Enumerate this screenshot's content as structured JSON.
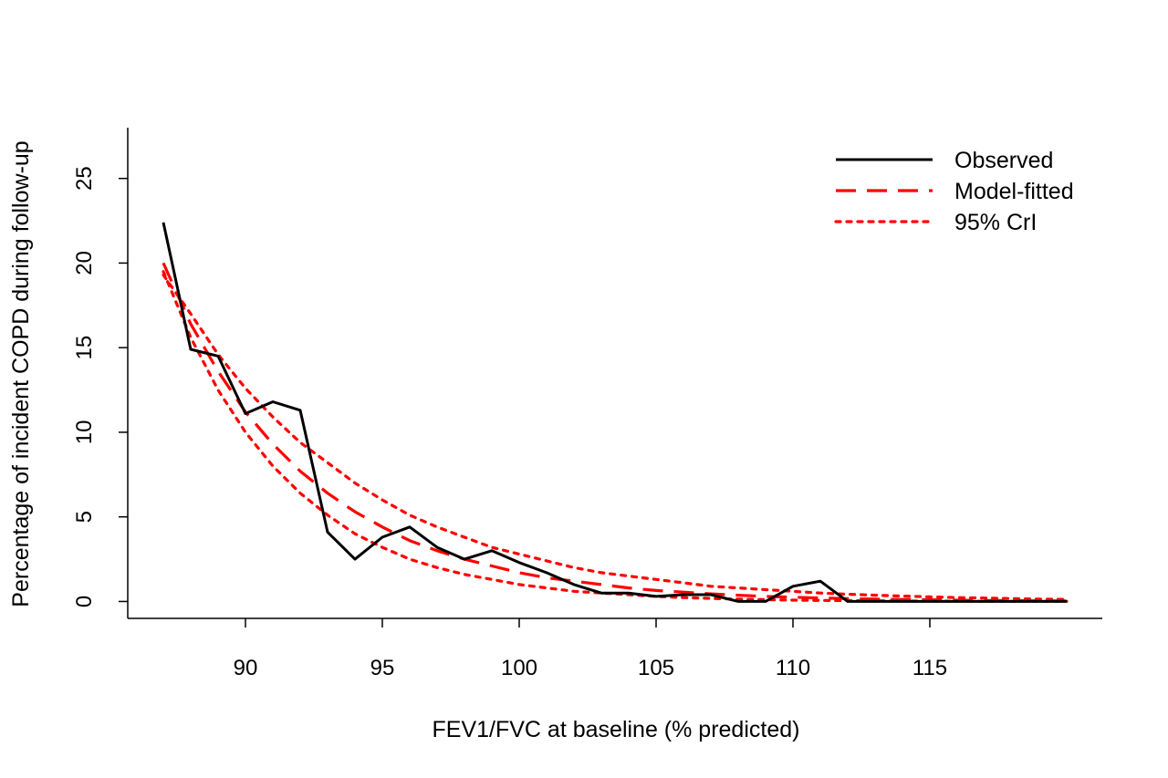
{
  "chart_data": {
    "type": "line",
    "xlabel": "FEV1/FVC at baseline (% predicted)",
    "ylabel": "Percentage of incident COPD during follow-up",
    "xlim": [
      85.7,
      121.3
    ],
    "ylim": [
      -1.0,
      28.0
    ],
    "xticks": [
      90,
      95,
      100,
      105,
      110,
      115
    ],
    "yticks": [
      0,
      5,
      10,
      15,
      20,
      25
    ],
    "legend": {
      "position": "top-right",
      "entries": [
        {
          "label": "Observed",
          "color": "#000000",
          "style": "solid"
        },
        {
          "label": "Model-fitted",
          "color": "#ff0000",
          "style": "dashed"
        },
        {
          "label": "95% CrI",
          "color": "#ff0000",
          "style": "dotted"
        }
      ]
    },
    "series": [
      {
        "name": "Observed",
        "color": "#000000",
        "style": "solid",
        "x": [
          87,
          88,
          89,
          90,
          91,
          92,
          93,
          94,
          95,
          96,
          97,
          98,
          99,
          100,
          101,
          102,
          103,
          104,
          105,
          106,
          107,
          108,
          109,
          110,
          111,
          112,
          113,
          114,
          115,
          116,
          117,
          118,
          119,
          120
        ],
        "y": [
          22.4,
          14.9,
          14.5,
          11.1,
          11.8,
          11.3,
          4.1,
          2.5,
          3.8,
          4.4,
          3.2,
          2.5,
          3.0,
          2.3,
          1.7,
          1.0,
          0.5,
          0.5,
          0.3,
          0.4,
          0.4,
          0.0,
          0.0,
          0.9,
          1.2,
          0.0,
          0.0,
          0.0,
          0.0,
          0.0,
          0.0,
          0.0,
          0.0,
          0.0
        ]
      },
      {
        "name": "Model-fitted",
        "color": "#ff0000",
        "style": "dashed",
        "x": [
          87,
          88,
          89,
          90,
          91,
          92,
          93,
          94,
          95,
          96,
          97,
          98,
          99,
          100,
          101,
          102,
          103,
          104,
          105,
          106,
          107,
          108,
          109,
          110,
          111,
          112,
          113,
          114,
          115,
          116,
          117,
          118,
          119,
          120
        ],
        "y": [
          20.0,
          16.4,
          13.6,
          11.2,
          9.3,
          7.7,
          6.4,
          5.3,
          4.4,
          3.6,
          3.0,
          2.5,
          2.1,
          1.7,
          1.4,
          1.2,
          1.0,
          0.8,
          0.65,
          0.55,
          0.45,
          0.37,
          0.3,
          0.25,
          0.2,
          0.17,
          0.14,
          0.12,
          0.1,
          0.08,
          0.06,
          0.05,
          0.04,
          0.03
        ]
      },
      {
        "name": "95% CrI (upper)",
        "color": "#ff0000",
        "style": "dotted",
        "x": [
          87,
          88,
          89,
          90,
          91,
          92,
          93,
          94,
          95,
          96,
          97,
          98,
          99,
          100,
          101,
          102,
          103,
          104,
          105,
          106,
          107,
          108,
          109,
          110,
          111,
          112,
          113,
          114,
          115,
          116,
          117,
          118,
          119,
          120
        ],
        "y": [
          19.3,
          17.0,
          14.6,
          12.6,
          10.9,
          9.4,
          8.2,
          7.0,
          6.0,
          5.1,
          4.4,
          3.8,
          3.2,
          2.8,
          2.4,
          2.0,
          1.7,
          1.5,
          1.3,
          1.1,
          0.9,
          0.8,
          0.7,
          0.6,
          0.5,
          0.43,
          0.37,
          0.32,
          0.27,
          0.23,
          0.2,
          0.17,
          0.14,
          0.12
        ]
      },
      {
        "name": "95% CrI (lower)",
        "color": "#ff0000",
        "style": "dotted",
        "x": [
          87,
          88,
          89,
          90,
          91,
          92,
          93,
          94,
          95,
          96,
          97,
          98,
          99,
          100,
          101,
          102,
          103,
          104,
          105,
          106,
          107,
          108,
          109,
          110,
          111,
          112,
          113,
          114,
          115,
          116,
          117,
          118,
          119,
          120
        ],
        "y": [
          19.5,
          15.6,
          12.5,
          10.0,
          8.0,
          6.4,
          5.1,
          4.0,
          3.2,
          2.5,
          2.0,
          1.6,
          1.3,
          1.0,
          0.8,
          0.6,
          0.5,
          0.4,
          0.3,
          0.23,
          0.18,
          0.14,
          0.11,
          0.08,
          0.06,
          0.05,
          0.04,
          0.03,
          0.02,
          0.02,
          0.01,
          0.01,
          0.01,
          0.01
        ]
      }
    ]
  }
}
